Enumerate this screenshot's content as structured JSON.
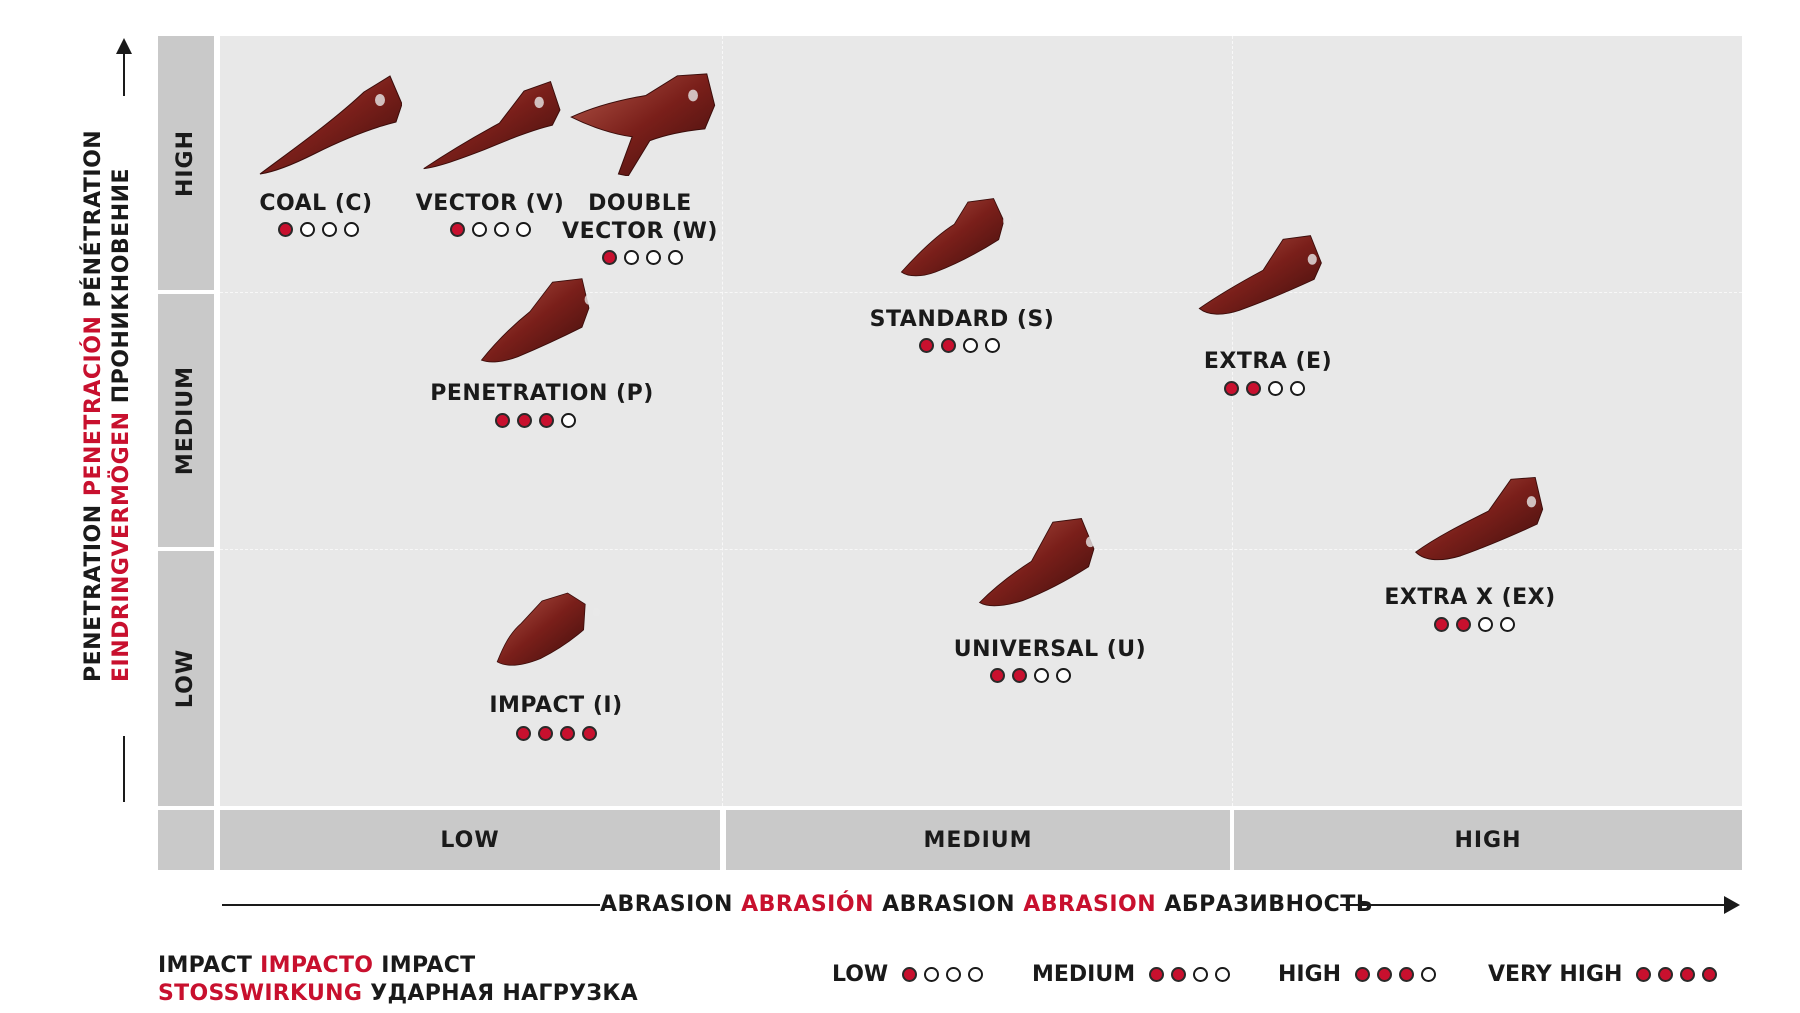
{
  "chart_data": {
    "type": "scatter",
    "xlabel": "ABRASION ABRASIÓN ABRASION ABRASION АБРАЗИВНОСТЬ",
    "xlabel_parts": [
      {
        "text": "ABRASION",
        "color": "#1a1a1a"
      },
      {
        "text": "ABRASIÓN",
        "color": "#c8102e"
      },
      {
        "text": "ABRASION",
        "color": "#1a1a1a"
      },
      {
        "text": "ABRASION",
        "color": "#c8102e"
      },
      {
        "text": "АБРАЗИВНОСТЬ",
        "color": "#1a1a1a"
      }
    ],
    "ylabel_lines": [
      [
        {
          "text": "PENETRATION",
          "color": "#1a1a1a"
        },
        {
          "text": "PENETRACIÓN",
          "color": "#c8102e"
        },
        {
          "text": "PÉNÉTRATION",
          "color": "#1a1a1a"
        }
      ],
      [
        {
          "text": "EINDRINGVERMÖGEN",
          "color": "#c8102e"
        },
        {
          "text": "ПРОНИКНОВЕНИЕ",
          "color": "#1a1a1a"
        }
      ]
    ],
    "x_categories": [
      "LOW",
      "MEDIUM",
      "HIGH"
    ],
    "y_categories": [
      "LOW",
      "MEDIUM",
      "HIGH"
    ],
    "points": [
      {
        "label": "COAL (C)",
        "abrasion": "LOW",
        "penetration": "HIGH",
        "impact": 1
      },
      {
        "label": "VECTOR (V)",
        "abrasion": "LOW",
        "penetration": "HIGH",
        "impact": 1
      },
      {
        "label": "DOUBLE\nVECTOR (W)",
        "abrasion": "LOW",
        "penetration": "HIGH",
        "impact": 1
      },
      {
        "label": "PENETRATION (P)",
        "abrasion": "LOW",
        "penetration": "MEDIUM",
        "impact": 3
      },
      {
        "label": "IMPACT (I)",
        "abrasion": "LOW",
        "penetration": "LOW",
        "impact": 4
      },
      {
        "label": "STANDARD (S)",
        "abrasion": "MEDIUM",
        "penetration": "HIGH",
        "impact": 2
      },
      {
        "label": "UNIVERSAL (U)",
        "abrasion": "MEDIUM",
        "penetration": "LOW",
        "impact": 2
      },
      {
        "label": "EXTRA (E)",
        "abrasion": "HIGH",
        "penetration": "MEDIUM",
        "impact": 2
      },
      {
        "label": "EXTRA X (EX)",
        "abrasion": "HIGH",
        "penetration": "LOW",
        "impact": 2
      }
    ],
    "impact_scale_max": 4,
    "legend": {
      "title_parts": [
        {
          "text": "IMPACT",
          "color": "#1a1a1a"
        },
        {
          "text": "IMPACTO",
          "color": "#c8102e"
        },
        {
          "text": "IMPACT",
          "color": "#1a1a1a"
        },
        {
          "text": "STOSSWIRKUNG",
          "color": "#c8102e",
          "newline": true
        },
        {
          "text": "УДАРНАЯ НАГРУЗКА",
          "color": "#1a1a1a"
        }
      ],
      "items": [
        {
          "label": "LOW",
          "filled": 1
        },
        {
          "label": "MEDIUM",
          "filled": 2
        },
        {
          "label": "HIGH",
          "filled": 3
        },
        {
          "label": "VERY HIGH",
          "filled": 4
        }
      ]
    },
    "colors": {
      "filled_dot": "#c8102e",
      "tooth": "#7a1f1a",
      "plot_bg": "#e8e8e8",
      "band": "#c9c9c9"
    },
    "grid": true
  }
}
